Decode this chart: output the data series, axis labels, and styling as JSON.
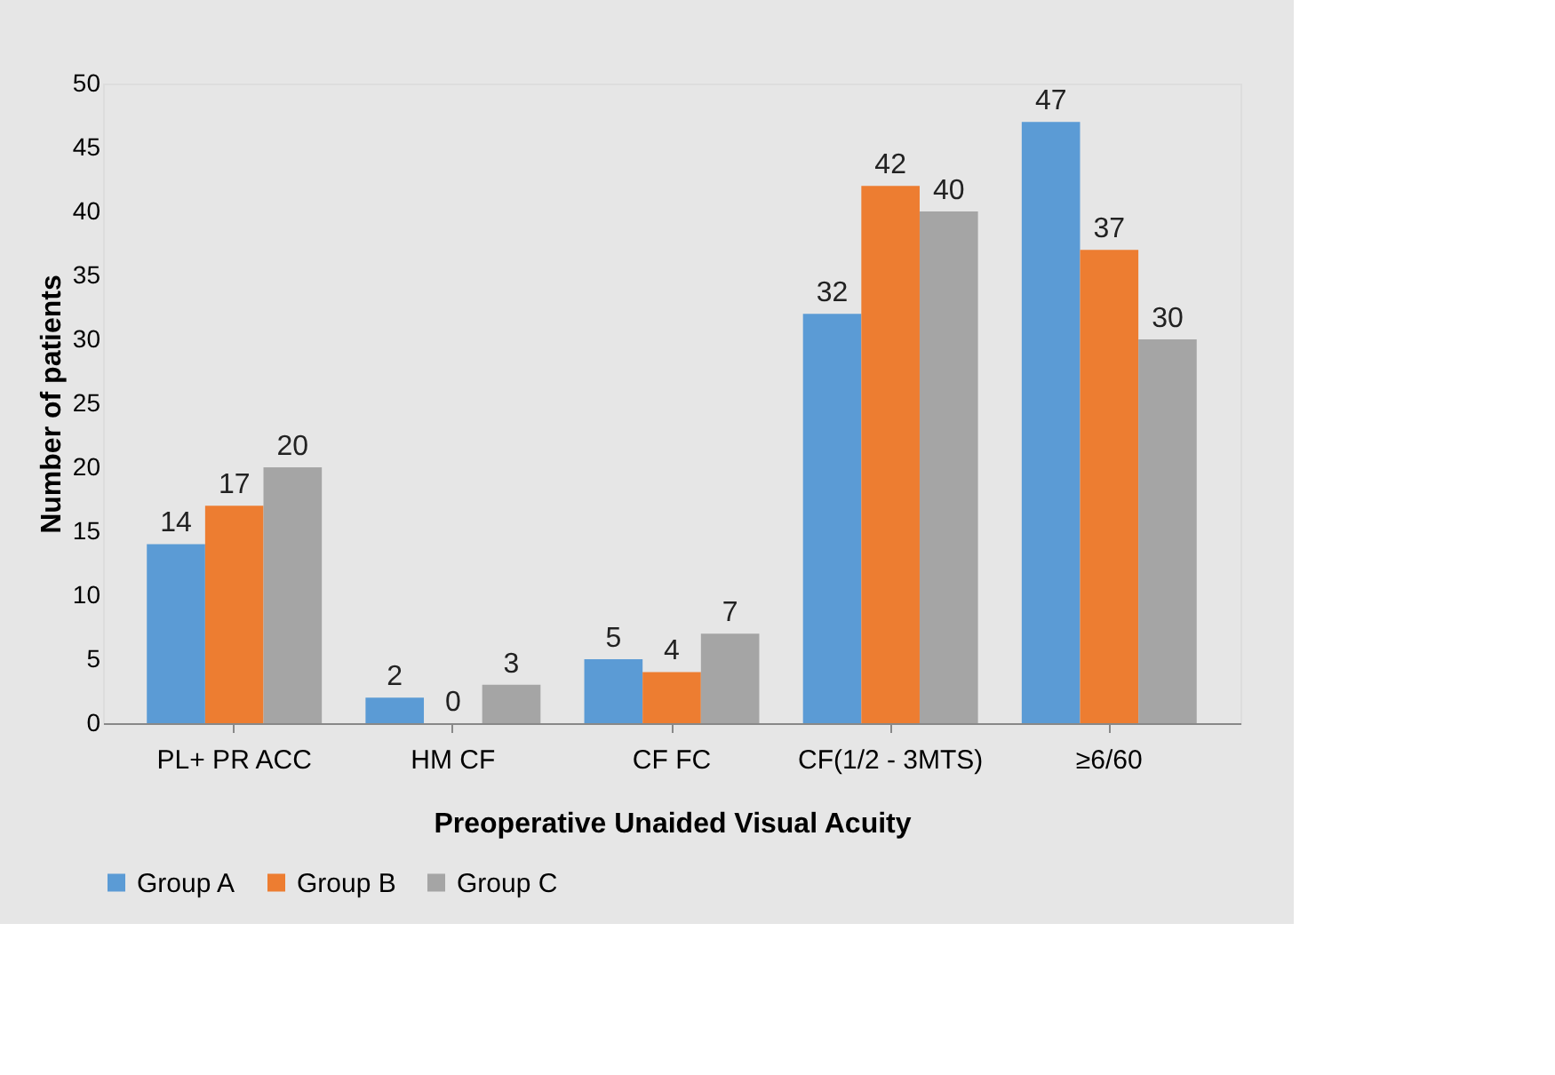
{
  "chart_data": {
    "type": "bar",
    "xlabel": "Preoperative Unaided Visual Acuity",
    "ylabel": "Number of patients",
    "categories": [
      "PL+ PR ACC",
      "HM CF",
      "CF FC",
      "CF(1/2 - 3MTS)",
      "≥6/60"
    ],
    "series": [
      {
        "name": "Group A",
        "color": "#5b9bd5",
        "values": [
          14,
          2,
          5,
          32,
          47
        ]
      },
      {
        "name": "Group B",
        "color": "#ed7d31",
        "values": [
          17,
          0,
          4,
          42,
          37
        ]
      },
      {
        "name": "Group C",
        "color": "#a5a5a5",
        "values": [
          20,
          3,
          7,
          40,
          30
        ]
      }
    ],
    "ylim": [
      0,
      50
    ],
    "yticks": [
      0,
      5,
      10,
      15,
      20,
      25,
      30,
      35,
      40,
      45,
      50
    ],
    "data_labels": true,
    "grid": false,
    "legend": "bottom"
  }
}
